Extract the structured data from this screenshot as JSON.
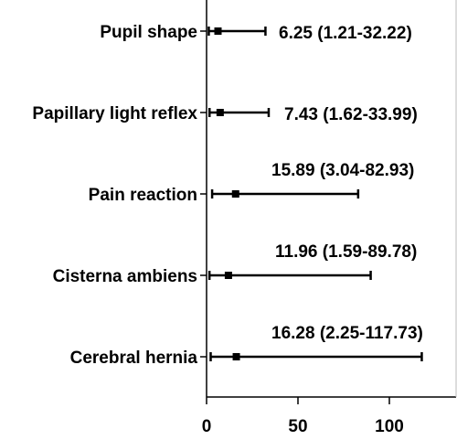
{
  "chart_data": {
    "type": "forest",
    "title": "",
    "xlabel": "",
    "ylabel": "",
    "xlim": [
      0,
      120
    ],
    "x_ticks": [
      0,
      50,
      100
    ],
    "x_tick_labels": [
      "0",
      "50",
      "100"
    ],
    "grid": false,
    "legend": "none",
    "rows": [
      {
        "label": "Pupil shape",
        "estimate": 6.25,
        "lower": 1.21,
        "upper": 32.22,
        "annotation": "6.25 (1.21-32.22)"
      },
      {
        "label": "Papillary light reflex",
        "estimate": 7.43,
        "lower": 1.62,
        "upper": 33.99,
        "annotation": "7.43 (1.62-33.99)"
      },
      {
        "label": "Pain reaction",
        "estimate": 15.89,
        "lower": 3.04,
        "upper": 82.93,
        "annotation": "15.89 (3.04-82.93)"
      },
      {
        "label": "Cisterna ambiens",
        "estimate": 11.96,
        "lower": 1.59,
        "upper": 89.78,
        "annotation": "11.96 (1.59-89.78)"
      },
      {
        "label": "Cerebral hernia",
        "estimate": 16.28,
        "lower": 2.25,
        "upper": 117.73,
        "annotation": "16.28 (2.25-117.73)"
      }
    ],
    "colors": {
      "line": "#000000",
      "marker": "#000000"
    }
  }
}
